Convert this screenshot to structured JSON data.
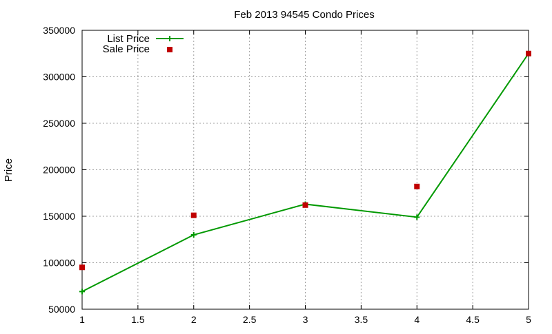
{
  "chart_data": {
    "type": "line",
    "title": "Feb 2013 94545 Condo Prices",
    "xlabel": "",
    "ylabel": "Price",
    "xlim": [
      1,
      5
    ],
    "ylim": [
      50000,
      350000
    ],
    "xticks": [
      "1",
      "1.5",
      "2",
      "2.5",
      "3",
      "3.5",
      "4",
      "4.5",
      "5"
    ],
    "yticks": [
      "50000",
      "100000",
      "150000",
      "200000",
      "250000",
      "300000",
      "350000"
    ],
    "grid": true,
    "legend_position": "top-left",
    "series": [
      {
        "name": "List Price",
        "style": "line+plus-marker",
        "color": "#009900",
        "x": [
          1,
          2,
          3,
          4,
          5
        ],
        "y": [
          69000,
          130000,
          163000,
          149000,
          325000
        ]
      },
      {
        "name": "Sale Price",
        "style": "square-marker",
        "color": "#c00000",
        "x": [
          1,
          2,
          3,
          4,
          5
        ],
        "y": [
          95000,
          151000,
          162000,
          182000,
          325000
        ]
      }
    ]
  }
}
